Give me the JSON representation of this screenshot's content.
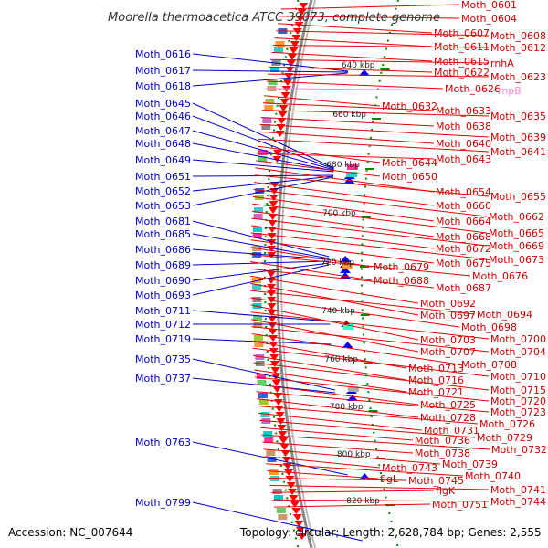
{
  "title": "Moorella thermoacetica ATCC 39073, complete genome",
  "footer": {
    "accession": "Accession: NC_007644",
    "topology": "Topology: circular; Length: 2,628,784 bp; Genes: 2,555"
  },
  "colors": {
    "forward_gene": "#ff0000",
    "reverse_gene": "#0000ff",
    "forward_label": "#cc0000",
    "reverse_label": "#0000cc",
    "rna_label": "#ff88cc",
    "backbone": "#888888",
    "tick": "#008800"
  },
  "kbp_ticks": [
    "640 kbp",
    "660 kbp",
    "680 kbp",
    "700 kbp",
    "720 kbp",
    "740 kbp",
    "760 kbp",
    "780 kbp",
    "800 kbp",
    "820 kbp"
  ],
  "reverse_labels": [
    "Moth_0616",
    "Moth_0617",
    "Moth_0618",
    "Moth_0645",
    "Moth_0646",
    "Moth_0647",
    "Moth_0648",
    "Moth_0649",
    "Moth_0651",
    "Moth_0652",
    "Moth_0653",
    "Moth_0681",
    "Moth_0685",
    "Moth_0686",
    "Moth_0689",
    "Moth_0690",
    "Moth_0693",
    "Moth_0711",
    "Moth_0712",
    "Moth_0719",
    "Moth_0735",
    "Moth_0737",
    "Moth_0763",
    "Moth_0799"
  ],
  "forward_labels": [
    "Moth_0601",
    "Moth_0604",
    "Moth_0607",
    "Moth_0608",
    "Moth_0611",
    "Moth_0612",
    "Moth_0615",
    "rnhA",
    "Moth_0622",
    "Moth_0623",
    "Moth_0626",
    "rnpB",
    "Moth_0632",
    "Moth_0633",
    "Moth_0635",
    "Moth_0638",
    "Moth_0639",
    "Moth_0640",
    "Moth_0641",
    "Moth_0644",
    "Moth_0643",
    "Moth_0650",
    "Moth_0654",
    "Moth_0655",
    "Moth_0660",
    "Moth_0662",
    "Moth_0664",
    "Moth_0665",
    "Moth_0668",
    "Moth_0669",
    "Moth_0672",
    "Moth_0673",
    "Moth_0675",
    "Moth_0679",
    "Moth_0676",
    "Moth_0688",
    "Moth_0687",
    "Moth_0692",
    "Moth_0697",
    "Moth_0694",
    "Moth_0698",
    "Moth_0703",
    "Moth_0700",
    "Moth_0707",
    "Moth_0704",
    "Moth_0708",
    "Moth_0713",
    "Moth_0710",
    "Moth_0716",
    "Moth_0715",
    "Moth_0721",
    "Moth_0720",
    "Moth_0725",
    "Moth_0723",
    "Moth_0728",
    "Moth_0726",
    "Moth_0731",
    "Moth_0729",
    "Moth_0736",
    "Moth_0732",
    "Moth_0738",
    "Moth_0739",
    "Moth_0743",
    "Moth_0740",
    "flgL",
    "Moth_0745",
    "Moth_0741",
    "flgK",
    "Moth_0744",
    "Moth_0751"
  ]
}
